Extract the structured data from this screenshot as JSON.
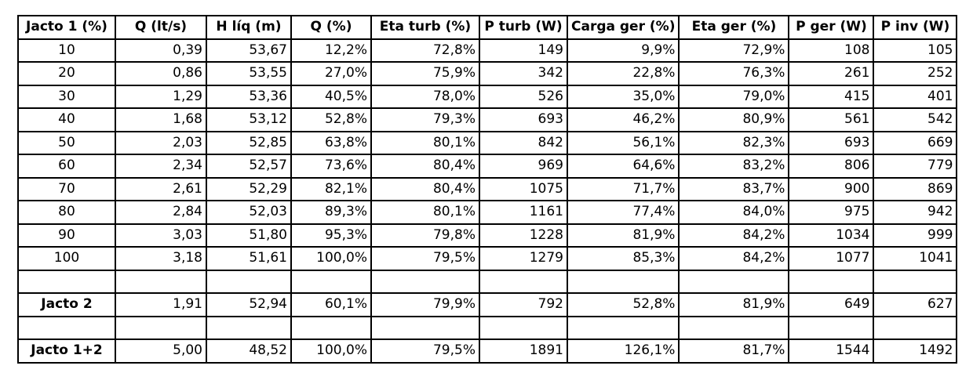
{
  "headers": [
    "Jacto 1 (%)",
    "Q (lt/s)",
    "H líq (m)",
    "Q (%)",
    "Eta turb (%)",
    "P turb (W)",
    "Carga ger (%)",
    "Eta ger (%)",
    "P ger (W)",
    "P inv (W)"
  ],
  "rows": [
    {
      "type": "data",
      "label_bold": false,
      "cells": [
        "10",
        "0,39",
        "53,67",
        "12,2%",
        "72,8%",
        "149",
        "9,9%",
        "72,9%",
        "108",
        "105"
      ]
    },
    {
      "type": "data",
      "label_bold": false,
      "cells": [
        "20",
        "0,86",
        "53,55",
        "27,0%",
        "75,9%",
        "342",
        "22,8%",
        "76,3%",
        "261",
        "252"
      ]
    },
    {
      "type": "data",
      "label_bold": false,
      "cells": [
        "30",
        "1,29",
        "53,36",
        "40,5%",
        "78,0%",
        "526",
        "35,0%",
        "79,0%",
        "415",
        "401"
      ]
    },
    {
      "type": "data",
      "label_bold": false,
      "cells": [
        "40",
        "1,68",
        "53,12",
        "52,8%",
        "79,3%",
        "693",
        "46,2%",
        "80,9%",
        "561",
        "542"
      ]
    },
    {
      "type": "data",
      "label_bold": false,
      "cells": [
        "50",
        "2,03",
        "52,85",
        "63,8%",
        "80,1%",
        "842",
        "56,1%",
        "82,3%",
        "693",
        "669"
      ]
    },
    {
      "type": "data",
      "label_bold": false,
      "cells": [
        "60",
        "2,34",
        "52,57",
        "73,6%",
        "80,4%",
        "969",
        "64,6%",
        "83,2%",
        "806",
        "779"
      ]
    },
    {
      "type": "data",
      "label_bold": false,
      "cells": [
        "70",
        "2,61",
        "52,29",
        "82,1%",
        "80,4%",
        "1075",
        "71,7%",
        "83,7%",
        "900",
        "869"
      ]
    },
    {
      "type": "data",
      "label_bold": false,
      "cells": [
        "80",
        "2,84",
        "52,03",
        "89,3%",
        "80,1%",
        "1161",
        "77,4%",
        "84,0%",
        "975",
        "942"
      ]
    },
    {
      "type": "data",
      "label_bold": false,
      "cells": [
        "90",
        "3,03",
        "51,80",
        "95,3%",
        "79,8%",
        "1228",
        "81,9%",
        "84,2%",
        "1034",
        "999"
      ]
    },
    {
      "type": "data",
      "label_bold": false,
      "cells": [
        "100",
        "3,18",
        "51,61",
        "100,0%",
        "79,5%",
        "1279",
        "85,3%",
        "84,2%",
        "1077",
        "1041"
      ]
    },
    {
      "type": "blank"
    },
    {
      "type": "data",
      "label_bold": true,
      "cells": [
        "Jacto 2",
        "1,91",
        "52,94",
        "60,1%",
        "79,9%",
        "792",
        "52,8%",
        "81,9%",
        "649",
        "627"
      ]
    },
    {
      "type": "blank"
    },
    {
      "type": "data",
      "label_bold": true,
      "cells": [
        "Jacto 1+2",
        "5,00",
        "48,52",
        "100,0%",
        "79,5%",
        "1891",
        "126,1%",
        "81,7%",
        "1544",
        "1492"
      ]
    }
  ]
}
